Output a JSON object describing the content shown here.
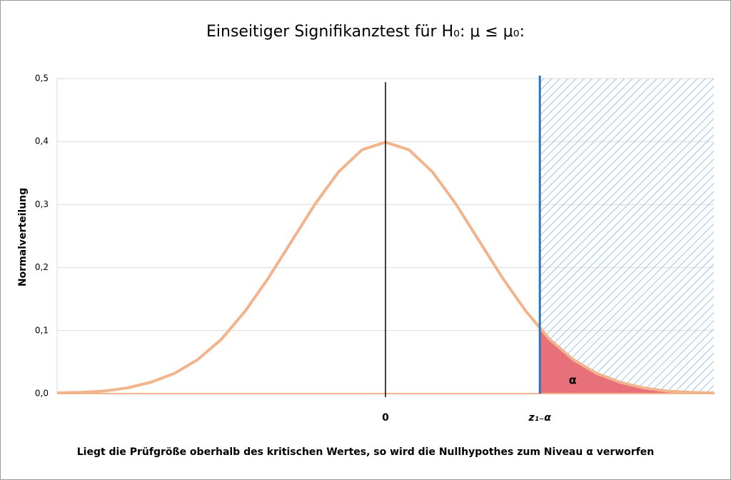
{
  "chart_data": {
    "type": "line",
    "title": "Einseitiger Signifikanztest für H₀: μ ≤ μ₀:",
    "y_label": "Normalverteilung",
    "caption": "Liegt die Prüfgröße oberhalb des kritischen Wertes, so wird die Nullhypothes zum Niveau α verworfen",
    "annotation": "α",
    "x": [
      -3.5,
      -3.25,
      -3,
      -2.75,
      -2.5,
      -2.25,
      -2,
      -1.75,
      -1.5,
      -1.25,
      -1,
      -0.75,
      -0.5,
      -0.25,
      0,
      0.25,
      0.5,
      0.75,
      1,
      1.25,
      1.5,
      1.75,
      2,
      2.25,
      2.5,
      2.75,
      3,
      3.25,
      3.5
    ],
    "series": [
      {
        "name": "Normalverteilung",
        "color": "#f2b48c",
        "values": [
          0.001,
          0.002,
          0.004,
          0.009,
          0.018,
          0.032,
          0.054,
          0.086,
          0.13,
          0.183,
          0.242,
          0.301,
          0.352,
          0.387,
          0.399,
          0.387,
          0.352,
          0.301,
          0.242,
          0.183,
          0.13,
          0.086,
          0.054,
          0.032,
          0.018,
          0.009,
          0.004,
          0.002,
          0.001
        ]
      }
    ],
    "xlim": [
      -3.5,
      3.5
    ],
    "xticks": [
      0,
      {
        "value": 1.645,
        "label": "z₁₋α"
      }
    ],
    "ylim": [
      0,
      0.5
    ],
    "yticks": [
      {
        "value": 0,
        "label": "0,0"
      },
      {
        "value": 0.1,
        "label": "0,1"
      },
      {
        "value": 0.2,
        "label": "0,2"
      },
      {
        "value": 0.3,
        "label": "0,3"
      },
      {
        "value": 0.4,
        "label": "0,4"
      },
      {
        "value": 0.5,
        "label": "0,5"
      }
    ],
    "grid": true,
    "critical_color": "#2e75b6",
    "rejection_color": "#e8707a"
  }
}
